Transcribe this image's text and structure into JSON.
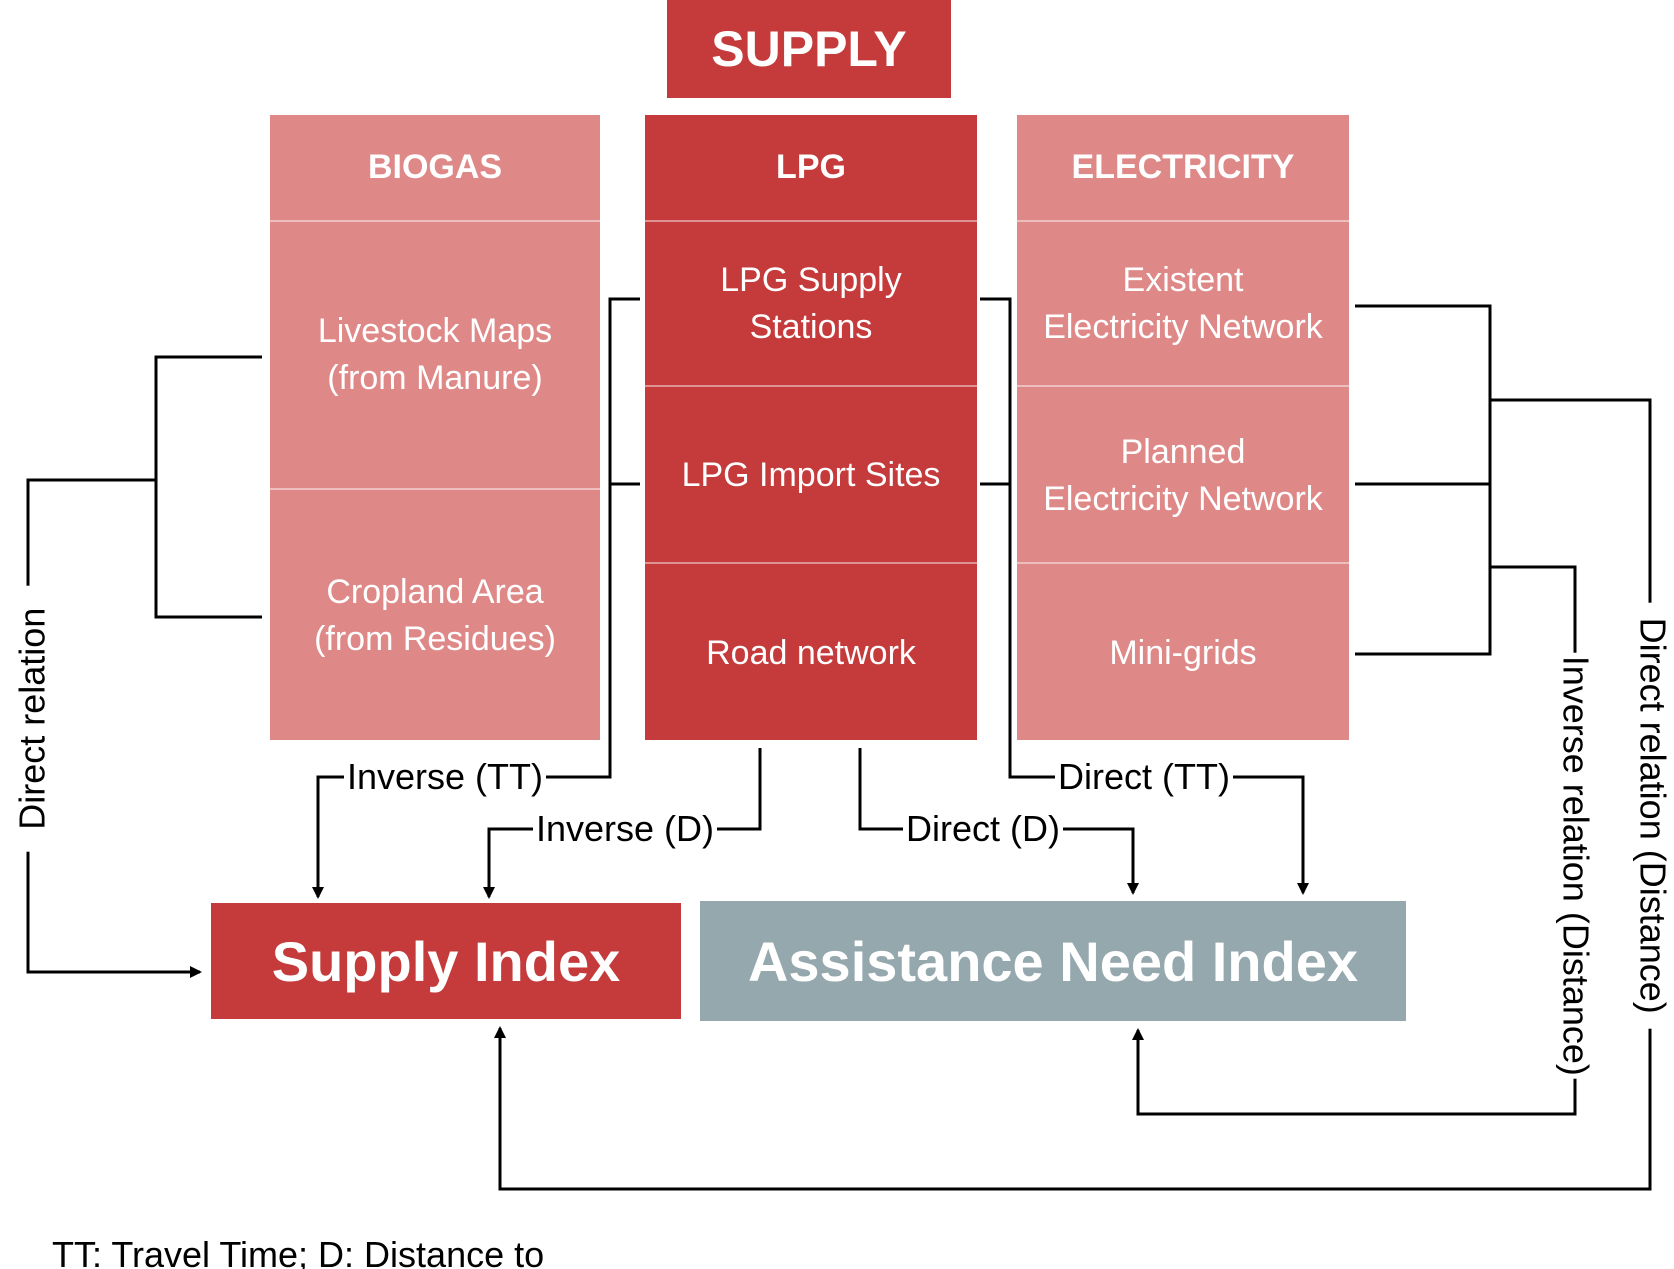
{
  "title": "SUPPLY",
  "columns": {
    "biogas": {
      "header": "BIOGAS",
      "items": [
        "Livestock Maps\n(from Manure)",
        "Cropland Area\n(from Residues)"
      ]
    },
    "lpg": {
      "header": "LPG",
      "items": [
        "LPG Supply\nStations",
        "LPG Import Sites",
        "Road network"
      ]
    },
    "electricity": {
      "header": "ELECTRICITY",
      "items": [
        "Existent\nElectricity Network",
        "Planned\nElectricity Network",
        "Mini-grids"
      ]
    }
  },
  "indices": {
    "supply": "Supply Index",
    "assistance_need": "Assistance Need Index"
  },
  "relations": {
    "inverse_tt": "Inverse (TT)",
    "inverse_d": "Inverse (D)",
    "direct_d": "Direct (D)",
    "direct_tt": "Direct (TT)",
    "direct_relation_left": "Direct relation",
    "inverse_relation_distance": "Inverse relation (Distance)",
    "direct_relation_distance": "Direct relation (Distance)"
  },
  "footnote": "TT: Travel Time; D: Distance to",
  "colors": {
    "dark_red": "#c53a3a",
    "light_red": "#de8987",
    "gray_blue": "#95a8ad"
  }
}
